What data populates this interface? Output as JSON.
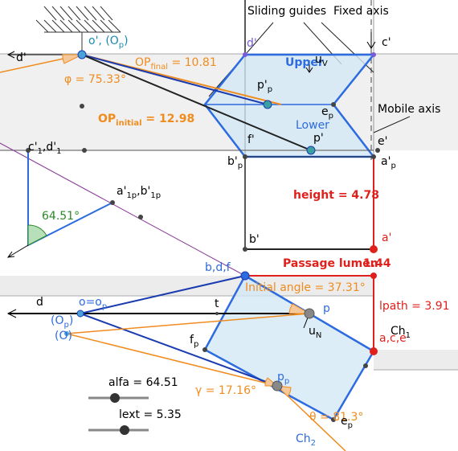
{
  "labels": [
    {
      "parts": [
        {
          "text": "Sliding guides"
        }
      ]
    },
    {
      "parts": [
        {
          "text": "Fixed axis"
        }
      ]
    },
    {
      "parts": [
        {
          "text": "c'"
        }
      ]
    },
    {
      "parts": [
        {
          "text": "d'"
        }
      ]
    },
    {
      "parts": [
        {
          "text": "o', (O"
        },
        {
          "sub": "p"
        },
        {
          "text": ")"
        }
      ]
    },
    {
      "parts": [
        {
          "text": "d'"
        }
      ]
    },
    {
      "parts": [
        {
          "text": "OP"
        },
        {
          "sub": "final"
        },
        {
          "text": " = 10.81"
        }
      ]
    },
    {
      "parts": [
        {
          "text": "Upper"
        }
      ]
    },
    {
      "parts": [
        {
          "text": "u"
        },
        {
          "sub": "V"
        }
      ]
    },
    {
      "parts": [
        {
          "text": "φ = 75.33°"
        }
      ]
    },
    {
      "parts": [
        {
          "text": "p'"
        },
        {
          "sub": "p"
        }
      ]
    },
    {
      "parts": [
        {
          "text": "e"
        },
        {
          "sub": "p"
        }
      ]
    },
    {
      "parts": [
        {
          "text": "Mobile axis"
        }
      ]
    },
    {
      "parts": [
        {
          "text": "OP"
        },
        {
          "sub": "initial"
        },
        {
          "text": " = 12.98"
        }
      ]
    },
    {
      "parts": [
        {
          "text": "Lower"
        }
      ]
    },
    {
      "parts": [
        {
          "text": "p'"
        }
      ]
    },
    {
      "parts": [
        {
          "text": "f'"
        }
      ]
    },
    {
      "parts": [
        {
          "text": "e'"
        }
      ]
    },
    {
      "parts": [
        {
          "text": "c'"
        },
        {
          "sub": "1"
        },
        {
          "text": ",d'"
        },
        {
          "sub": "1"
        }
      ]
    },
    {
      "parts": [
        {
          "text": "b'"
        },
        {
          "sub": "p"
        }
      ]
    },
    {
      "parts": [
        {
          "text": "a'"
        },
        {
          "sub": "p"
        }
      ]
    },
    {
      "parts": [
        {
          "text": "a'"
        },
        {
          "sub": "1p"
        },
        {
          "text": ",b'"
        },
        {
          "sub": "1p"
        }
      ]
    },
    {
      "parts": [
        {
          "text": "height = 4.78"
        }
      ]
    },
    {
      "parts": [
        {
          "text": "64.51°"
        }
      ]
    },
    {
      "parts": [
        {
          "text": "b'"
        }
      ]
    },
    {
      "parts": [
        {
          "text": "a'"
        }
      ]
    },
    {
      "parts": [
        {
          "text": "b,d,f"
        }
      ]
    },
    {
      "parts": [
        {
          "text": "Passage lumen"
        }
      ]
    },
    {
      "parts": [
        {
          "text": "1.44"
        }
      ]
    },
    {
      "parts": [
        {
          "text": "Initial angle = 37.31°"
        }
      ]
    },
    {
      "parts": [
        {
          "text": "d"
        }
      ]
    },
    {
      "parts": [
        {
          "text": "o=o"
        },
        {
          "sub": "p"
        }
      ]
    },
    {
      "parts": [
        {
          "text": "t"
        }
      ]
    },
    {
      "parts": [
        {
          "text": "p"
        }
      ]
    },
    {
      "parts": [
        {
          "text": "lpath = 3.91"
        }
      ]
    },
    {
      "parts": [
        {
          "text": "(O"
        },
        {
          "sub": "p"
        },
        {
          "text": ")"
        }
      ]
    },
    {
      "parts": [
        {
          "text": "u"
        },
        {
          "sub": "N"
        }
      ]
    },
    {
      "parts": [
        {
          "text": "Ch"
        },
        {
          "sub": "1"
        }
      ]
    },
    {
      "parts": [
        {
          "text": "f"
        },
        {
          "sub": "p"
        }
      ]
    },
    {
      "parts": [
        {
          "text": "(O)"
        }
      ]
    },
    {
      "parts": [
        {
          "text": "a,c,e"
        }
      ]
    },
    {
      "parts": [
        {
          "text": "alfa = 64.51"
        }
      ]
    },
    {
      "parts": [
        {
          "text": "p"
        },
        {
          "sub": "p"
        }
      ]
    },
    {
      "parts": [
        {
          "text": "γ = 17.16°"
        }
      ]
    },
    {
      "parts": [
        {
          "text": "lext = 5.35"
        }
      ]
    },
    {
      "parts": [
        {
          "text": "θ = 81.3°"
        }
      ]
    },
    {
      "parts": [
        {
          "text": "e"
        },
        {
          "sub": "p"
        }
      ]
    },
    {
      "parts": [
        {
          "text": "Ch"
        },
        {
          "sub": "2"
        }
      ]
    }
  ]
}
